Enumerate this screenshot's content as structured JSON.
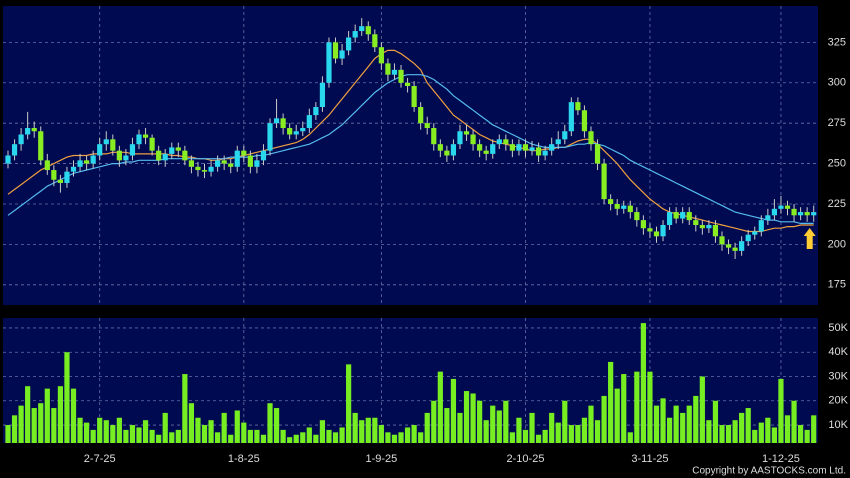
{
  "chart_data": {
    "type": "candlestick",
    "categories": [
      null,
      null,
      null,
      null,
      null,
      null,
      null,
      null,
      null,
      null,
      null,
      null,
      null,
      null,
      "2-7-25",
      null,
      null,
      null,
      null,
      null,
      null,
      null,
      null,
      null,
      null,
      null,
      null,
      null,
      null,
      null,
      null,
      null,
      null,
      null,
      null,
      null,
      "1-8-25",
      null,
      null,
      null,
      null,
      null,
      null,
      null,
      null,
      null,
      null,
      null,
      null,
      null,
      null,
      null,
      null,
      null,
      null,
      null,
      null,
      "1-9-25",
      null,
      null,
      null,
      null,
      null,
      null,
      null,
      null,
      null,
      null,
      null,
      null,
      null,
      null,
      null,
      null,
      null,
      null,
      null,
      null,
      null,
      "2-10-25",
      null,
      null,
      null,
      null,
      null,
      null,
      null,
      null,
      null,
      null,
      null,
      null,
      null,
      null,
      null,
      null,
      null,
      null,
      "3-11-25",
      null,
      null,
      null,
      null,
      null,
      null,
      null,
      null,
      null,
      null,
      null,
      null,
      null,
      null,
      null,
      null,
      null,
      null,
      null,
      "1-12-25",
      null,
      null,
      null,
      null,
      null
    ],
    "candles": [
      [
        250,
        258,
        247,
        255
      ],
      [
        255,
        265,
        252,
        262
      ],
      [
        262,
        272,
        258,
        268
      ],
      [
        268,
        282,
        265,
        272
      ],
      [
        272,
        276,
        266,
        270
      ],
      [
        270,
        273,
        249,
        252
      ],
      [
        252,
        256,
        243,
        246
      ],
      [
        246,
        249,
        236,
        240
      ],
      [
        240,
        243,
        232,
        238
      ],
      [
        238,
        248,
        235,
        245
      ],
      [
        245,
        252,
        242,
        248
      ],
      [
        248,
        256,
        245,
        252
      ],
      [
        252,
        255,
        246,
        250
      ],
      [
        250,
        258,
        247,
        255
      ],
      [
        255,
        266,
        252,
        262
      ],
      [
        262,
        270,
        258,
        265
      ],
      [
        265,
        268,
        255,
        258
      ],
      [
        258,
        261,
        248,
        252
      ],
      [
        252,
        259,
        249,
        255
      ],
      [
        255,
        266,
        252,
        262
      ],
      [
        262,
        271,
        259,
        268
      ],
      [
        268,
        272,
        262,
        266
      ],
      [
        266,
        268,
        255,
        258
      ],
      [
        258,
        261,
        249,
        252
      ],
      [
        252,
        259,
        248,
        256
      ],
      [
        256,
        263,
        253,
        260
      ],
      [
        260,
        263,
        254,
        258
      ],
      [
        258,
        261,
        249,
        252
      ],
      [
        252,
        255,
        244,
        248
      ],
      [
        248,
        251,
        242,
        246
      ],
      [
        246,
        250,
        241,
        245
      ],
      [
        245,
        252,
        242,
        248
      ],
      [
        248,
        255,
        245,
        252
      ],
      [
        252,
        255,
        246,
        250
      ],
      [
        250,
        253,
        244,
        248
      ],
      [
        248,
        261,
        245,
        258
      ],
      [
        258,
        261,
        251,
        255
      ],
      [
        255,
        258,
        244,
        248
      ],
      [
        248,
        256,
        244,
        252
      ],
      [
        252,
        262,
        249,
        258
      ],
      [
        258,
        278,
        255,
        275
      ],
      [
        275,
        290,
        272,
        278
      ],
      [
        278,
        281,
        268,
        272
      ],
      [
        272,
        275,
        265,
        268
      ],
      [
        268,
        274,
        265,
        270
      ],
      [
        270,
        276,
        267,
        272
      ],
      [
        272,
        284,
        269,
        280
      ],
      [
        280,
        288,
        277,
        285
      ],
      [
        285,
        304,
        282,
        300
      ],
      [
        300,
        328,
        297,
        325
      ],
      [
        325,
        328,
        312,
        315
      ],
      [
        315,
        324,
        311,
        320
      ],
      [
        320,
        332,
        317,
        328
      ],
      [
        328,
        336,
        325,
        332
      ],
      [
        332,
        340,
        329,
        335
      ],
      [
        335,
        338,
        326,
        330
      ],
      [
        330,
        333,
        319,
        322
      ],
      [
        322,
        325,
        308,
        312
      ],
      [
        312,
        315,
        301,
        305
      ],
      [
        305,
        312,
        302,
        308
      ],
      [
        308,
        311,
        297,
        300
      ],
      [
        300,
        303,
        294,
        298
      ],
      [
        298,
        301,
        282,
        285
      ],
      [
        285,
        288,
        271,
        275
      ],
      [
        275,
        279,
        268,
        272
      ],
      [
        272,
        275,
        258,
        262
      ],
      [
        262,
        265,
        254,
        258
      ],
      [
        258,
        261,
        251,
        255
      ],
      [
        255,
        265,
        252,
        262
      ],
      [
        262,
        274,
        259,
        270
      ],
      [
        270,
        274,
        264,
        268
      ],
      [
        268,
        271,
        258,
        262
      ],
      [
        262,
        265,
        254,
        258
      ],
      [
        258,
        261,
        252,
        256
      ],
      [
        256,
        265,
        253,
        262
      ],
      [
        262,
        268,
        259,
        265
      ],
      [
        265,
        268,
        258,
        262
      ],
      [
        262,
        265,
        254,
        258
      ],
      [
        258,
        265,
        255,
        262
      ],
      [
        262,
        265,
        254,
        258
      ],
      [
        258,
        264,
        255,
        260
      ],
      [
        260,
        263,
        251,
        255
      ],
      [
        255,
        261,
        252,
        258
      ],
      [
        258,
        266,
        255,
        262
      ],
      [
        262,
        270,
        259,
        265
      ],
      [
        265,
        274,
        262,
        270
      ],
      [
        270,
        291,
        267,
        288
      ],
      [
        288,
        291,
        280,
        283
      ],
      [
        283,
        286,
        266,
        270
      ],
      [
        270,
        273,
        258,
        262
      ],
      [
        262,
        265,
        246,
        250
      ],
      [
        250,
        253,
        225,
        228
      ],
      [
        228,
        231,
        221,
        225
      ],
      [
        225,
        228,
        218,
        222
      ],
      [
        222,
        227,
        219,
        224
      ],
      [
        224,
        227,
        216,
        220
      ],
      [
        220,
        223,
        211,
        215
      ],
      [
        215,
        218,
        206,
        210
      ],
      [
        210,
        213,
        204,
        208
      ],
      [
        208,
        211,
        201,
        205
      ],
      [
        205,
        215,
        202,
        212
      ],
      [
        212,
        223,
        209,
        220
      ],
      [
        220,
        223,
        213,
        216
      ],
      [
        216,
        223,
        213,
        220
      ],
      [
        220,
        223,
        212,
        215
      ],
      [
        215,
        218,
        208,
        212
      ],
      [
        212,
        215,
        206,
        210
      ],
      [
        210,
        215,
        207,
        212
      ],
      [
        212,
        215,
        201,
        205
      ],
      [
        205,
        208,
        196,
        200
      ],
      [
        200,
        203,
        194,
        198
      ],
      [
        198,
        201,
        191,
        196
      ],
      [
        196,
        205,
        193,
        202
      ],
      [
        202,
        209,
        199,
        206
      ],
      [
        206,
        211,
        203,
        208
      ],
      [
        208,
        218,
        205,
        215
      ],
      [
        215,
        222,
        212,
        218
      ],
      [
        218,
        228,
        215,
        222
      ],
      [
        222,
        230,
        219,
        224
      ],
      [
        224,
        227,
        218,
        222
      ],
      [
        222,
        225,
        214,
        218
      ],
      [
        218,
        223,
        215,
        220
      ],
      [
        220,
        223,
        214,
        218
      ],
      [
        218,
        224,
        214,
        220
      ]
    ],
    "up_color": "#2ad8ee",
    "down_color": "#88ee22",
    "lines": [
      {
        "color": "#f0a040",
        "values": [
          231,
          234,
          237,
          240,
          243,
          246,
          248,
          250,
          252,
          254,
          255,
          255,
          255,
          256,
          256,
          256,
          257,
          257,
          257,
          256,
          256,
          256,
          256,
          256,
          256,
          255,
          255,
          254,
          254,
          253,
          253,
          252,
          252,
          253,
          253,
          254,
          255,
          256,
          257,
          258,
          259,
          260,
          261,
          262,
          263,
          265,
          268,
          272,
          276,
          280,
          285,
          290,
          295,
          300,
          305,
          310,
          315,
          318,
          320,
          320,
          318,
          315,
          312,
          308,
          300,
          295,
          290,
          285,
          280,
          277,
          274,
          271,
          268,
          266,
          264,
          263,
          262,
          261,
          260,
          259,
          258,
          258,
          259,
          259,
          260,
          260,
          262,
          264,
          265,
          265,
          262,
          258,
          254,
          250,
          245,
          240,
          236,
          232,
          228,
          225,
          222,
          220,
          219,
          218,
          217,
          216,
          215,
          214,
          213,
          212,
          211,
          210,
          209,
          208,
          208,
          208,
          209,
          210,
          210,
          211,
          211,
          212,
          212,
          212
        ]
      },
      {
        "color": "#55bbee",
        "values": [
          218,
          221,
          224,
          227,
          230,
          233,
          236,
          238,
          240,
          242,
          244,
          245,
          246,
          247,
          248,
          249,
          250,
          250,
          251,
          251,
          252,
          252,
          252,
          252,
          253,
          253,
          253,
          253,
          253,
          253,
          253,
          253,
          253,
          253,
          254,
          254,
          254,
          254,
          255,
          255,
          256,
          257,
          258,
          259,
          260,
          261,
          262,
          264,
          266,
          268,
          271,
          274,
          278,
          282,
          286,
          290,
          294,
          297,
          300,
          302,
          304,
          305,
          305,
          305,
          304,
          302,
          299,
          296,
          292,
          289,
          286,
          283,
          280,
          277,
          274,
          272,
          270,
          268,
          266,
          264,
          262,
          261,
          260,
          260,
          260,
          260,
          261,
          262,
          262,
          263,
          262,
          261,
          259,
          257,
          255,
          252,
          250,
          248,
          246,
          244,
          242,
          240,
          238,
          236,
          234,
          232,
          230,
          228,
          226,
          224,
          222,
          220,
          219,
          218,
          217,
          216,
          215,
          215,
          214,
          214,
          214,
          213,
          213,
          213
        ]
      }
    ],
    "ylim": [
      162.5,
      347.5
    ],
    "yticks": [
      175,
      200,
      225,
      250,
      275,
      300,
      325
    ],
    "grid": true,
    "volume": {
      "color": "#77ee22",
      "values": [
        10000,
        14000,
        18000,
        26000,
        17000,
        19000,
        25000,
        17000,
        26000,
        40000,
        25000,
        13000,
        11000,
        8000,
        13000,
        12000,
        10000,
        13000,
        8000,
        10000,
        9000,
        12000,
        8000,
        6000,
        15000,
        7000,
        8000,
        31000,
        19000,
        13000,
        10000,
        12000,
        7000,
        15000,
        6000,
        16000,
        11000,
        8000,
        8000,
        6000,
        19000,
        17000,
        8000,
        5000,
        6000,
        7000,
        9000,
        6000,
        12000,
        8000,
        7000,
        9000,
        35000,
        15000,
        12000,
        13000,
        13000,
        10000,
        7000,
        6000,
        7000,
        9000,
        10000,
        7000,
        15000,
        20000,
        32000,
        17000,
        29000,
        15000,
        24000,
        23000,
        20000,
        12000,
        18000,
        16000,
        20000,
        7000,
        13000,
        8000,
        15000,
        6000,
        8000,
        15000,
        11000,
        20000,
        10000,
        10000,
        13000,
        18000,
        12000,
        22000,
        36000,
        25000,
        31000,
        7000,
        32000,
        52000,
        32000,
        18000,
        21000,
        13000,
        18000,
        15000,
        18000,
        22000,
        30000,
        12000,
        20000,
        10000,
        10000,
        12000,
        15000,
        17000,
        8000,
        11000,
        13000,
        9000,
        29000,
        14000,
        20000,
        10000,
        8000,
        14000
      ],
      "ylim": [
        2600,
        54100
      ],
      "yticks": [
        {
          "value": 10000,
          "label": "10K"
        },
        {
          "value": 20000,
          "label": "20K"
        },
        {
          "value": 30000,
          "label": "30K"
        },
        {
          "value": 40000,
          "label": "40K"
        },
        {
          "value": 50000,
          "label": "50K"
        }
      ]
    },
    "copyright": "Copyright by AASTOCKS.com Ltd."
  }
}
